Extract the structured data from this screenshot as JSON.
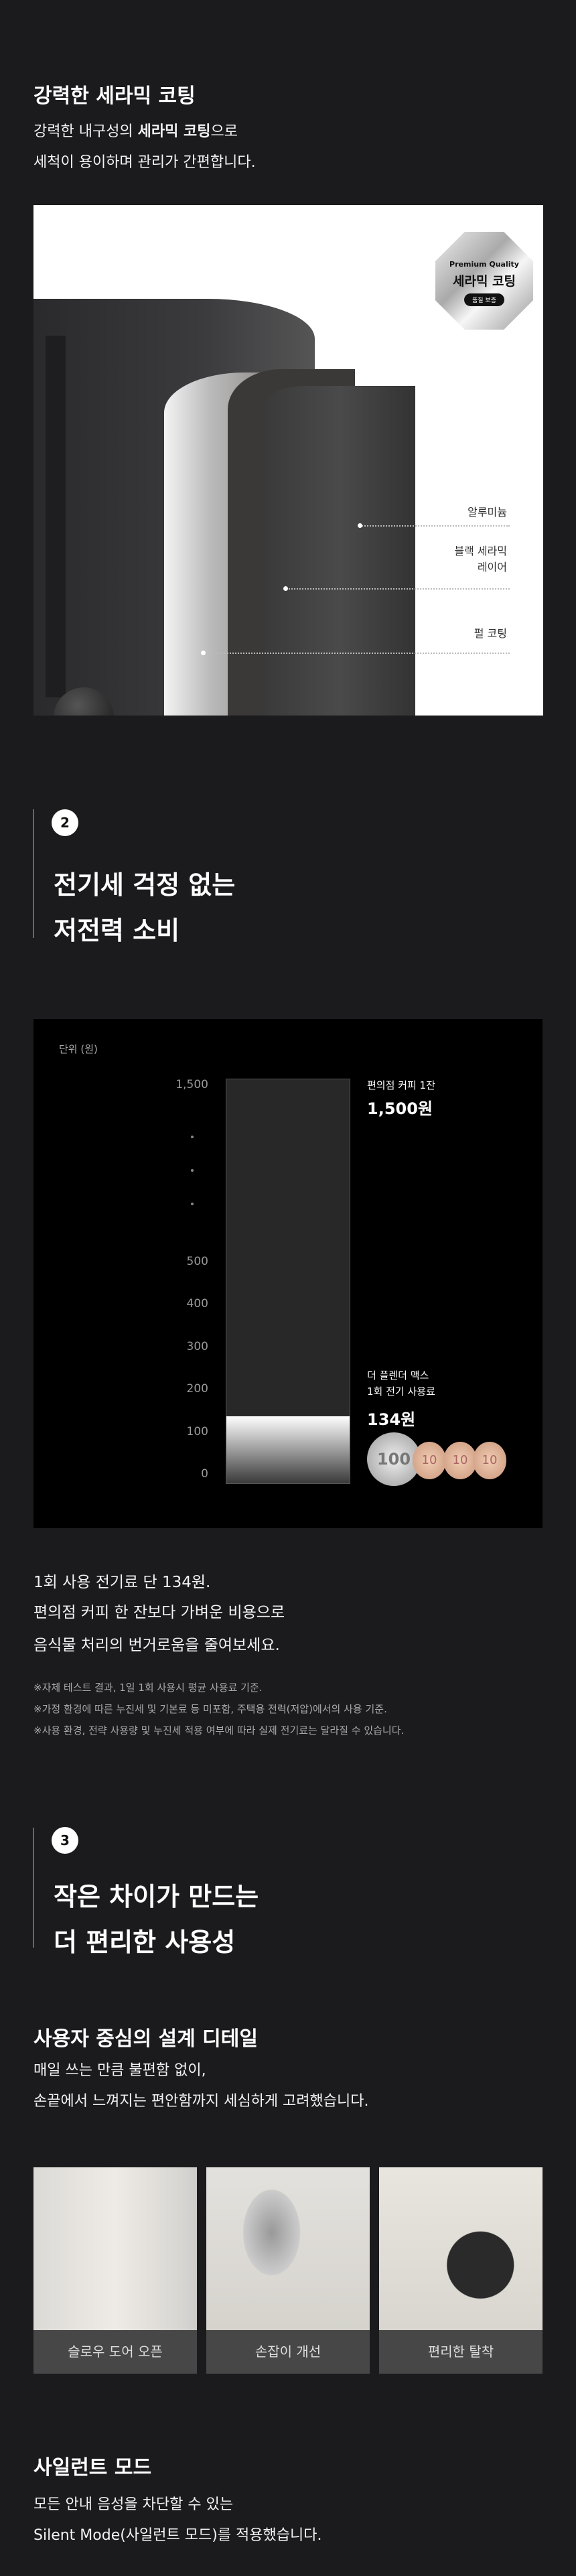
{
  "section1": {
    "title": "강력한 세라믹 코팅",
    "desc_line1_pre": "강력한 내구성의 ",
    "desc_line1_bold": "세라믹 코팅",
    "desc_line1_post": "으로",
    "desc_line2": "세척이 용이하며 관리가 간편합니다.",
    "badge": {
      "top": "Premium Quality",
      "main": "세라믹 코팅",
      "pill": "품질 보증"
    },
    "layers": [
      "알루미늄",
      "블랙 세라믹",
      "레이어",
      "펄 코팅"
    ]
  },
  "section2": {
    "number": "2",
    "title_line1": "전기세 걱정 없는",
    "title_line2": "저전력 소비",
    "desc": [
      "1회 사용 전기료 단 134원.",
      "편의점 커피 한 잔보다 가벼운 비용으로",
      "음식물 처리의 번거로움을 줄여보세요."
    ],
    "notes": [
      "※자체 테스트 결과, 1일 1회 사용시 평균 사용료 기준.",
      "※가정 환경에 따른 누진세 및 기본료 등 미포함, 주택용 전력(저압)에서의 사용 기준.",
      "※사용 환경, 전략 사용량 및 누진세 적용 여부에 따라 실제 전기료는 달라질 수 있습니다."
    ]
  },
  "chart_data": {
    "type": "bar",
    "unit_label": "단위 (원)",
    "yticks": [
      "1,500",
      "500",
      "400",
      "300",
      "200",
      "100",
      "0"
    ],
    "axis_break": true,
    "series": [
      {
        "name": "편의점 커피 1잔",
        "value": 1500,
        "value_label": "1,500원"
      },
      {
        "name_line1": "더 플렌더 맥스",
        "name_line2": "1회 전기 사용료",
        "value": 134,
        "value_label": "134원"
      }
    ],
    "coins": [
      "100",
      "10",
      "10",
      "10"
    ],
    "colors": {
      "bar_bg": "#282828",
      "fill_top": "#ffffff",
      "fill_bottom": "#3a3a3a"
    }
  },
  "section3": {
    "number": "3",
    "title_line1": "작은 차이가 만드는",
    "title_line2": "더 편리한 사용성",
    "sub_title": "사용자 중심의 설계 디테일",
    "sub_desc": [
      "매일 쓰는 만큼 불편함 없이,",
      "손끝에서 느껴지는 편안함까지 세심하게 고려했습니다."
    ],
    "cards": [
      {
        "label": "슬로우 도어 오픈"
      },
      {
        "label": "손잡이 개선"
      },
      {
        "label": "편리한 탈착"
      }
    ],
    "silent_title": "사일런트 모드",
    "silent_desc": [
      "모든 안내 음성을 차단할 수 있는",
      "Silent Mode(사일런트 모드)를 적용했습니다."
    ]
  }
}
